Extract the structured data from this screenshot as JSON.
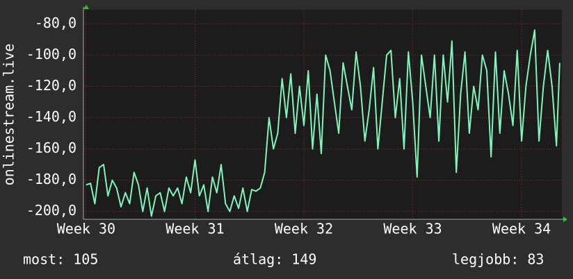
{
  "chart_data": {
    "type": "line",
    "y_label": "onlinestream.live",
    "xlim": [
      29.975,
      34.37
    ],
    "ylim": [
      -205,
      -71
    ],
    "xticks": [
      {
        "value": 30,
        "label": "Week 30"
      },
      {
        "value": 31,
        "label": "Week 31"
      },
      {
        "value": 32,
        "label": "Week 32"
      },
      {
        "value": 33,
        "label": "Week 33"
      },
      {
        "value": 34,
        "label": "Week 34"
      }
    ],
    "yticks": [
      {
        "value": -80,
        "label": "-80,0"
      },
      {
        "value": -100,
        "label": "-100,0"
      },
      {
        "value": -120,
        "label": "-120,0"
      },
      {
        "value": -140,
        "label": "-140,0"
      },
      {
        "value": -160,
        "label": "-160,0"
      },
      {
        "value": -180,
        "label": "-180,0"
      },
      {
        "value": -200,
        "label": "-200,0"
      }
    ],
    "grid": true,
    "x": [
      30,
      30.04,
      30.08,
      30.12,
      30.16,
      30.2,
      30.24,
      30.28,
      30.32,
      30.36,
      30.4,
      30.44,
      30.48,
      30.52,
      30.56,
      30.6,
      30.64,
      30.68,
      30.72,
      30.76,
      30.8,
      30.84,
      30.88,
      30.92,
      30.96,
      31,
      31.04,
      31.08,
      31.12,
      31.16,
      31.2,
      31.24,
      31.28,
      31.32,
      31.36,
      31.4,
      31.44,
      31.48,
      31.52,
      31.56,
      31.6,
      31.64,
      31.68,
      31.72,
      31.76,
      31.8,
      31.84,
      31.88,
      31.92,
      31.96,
      32,
      32.04,
      32.08,
      32.12,
      32.16,
      32.2,
      32.24,
      32.28,
      32.32,
      32.36,
      32.4,
      32.44,
      32.48,
      32.52,
      32.56,
      32.6,
      32.64,
      32.68,
      32.72,
      32.76,
      32.8,
      32.84,
      32.88,
      32.92,
      32.96,
      33,
      33.04,
      33.08,
      33.12,
      33.16,
      33.2,
      33.24,
      33.28,
      33.32,
      33.36,
      33.4,
      33.44,
      33.48,
      33.52,
      33.56,
      33.6,
      33.64,
      33.68,
      33.72,
      33.76,
      33.8,
      33.84,
      33.88,
      33.92,
      33.96,
      34,
      34.04,
      34.08,
      34.12,
      34.16,
      34.2,
      34.24,
      34.28,
      34.32,
      34.35
    ],
    "series": [
      {
        "color": "#80f5b8",
        "values": [
          -183,
          -182,
          -195,
          -172,
          -170,
          -190,
          -180,
          -185,
          -197,
          -188,
          -195,
          -175,
          -183,
          -200,
          -185,
          -203,
          -190,
          -188,
          -200,
          -185,
          -190,
          -185,
          -195,
          -178,
          -188,
          -167,
          -190,
          -183,
          -200,
          -178,
          -188,
          -170,
          -195,
          -200,
          -190,
          -198,
          -185,
          -200,
          -186,
          -187,
          -185,
          -175,
          -140,
          -160,
          -150,
          -115,
          -140,
          -112,
          -150,
          -120,
          -145,
          -110,
          -160,
          -125,
          -163,
          -100,
          -110,
          -130,
          -150,
          -105,
          -120,
          -135,
          -98,
          -120,
          -155,
          -135,
          -108,
          -160,
          -130,
          -100,
          -97,
          -140,
          -115,
          -160,
          -98,
          -130,
          -178,
          -100,
          -120,
          -140,
          -100,
          -155,
          -100,
          -130,
          -91,
          -175,
          -125,
          -98,
          -150,
          -120,
          -135,
          -100,
          -110,
          -165,
          -98,
          -150,
          -110,
          -125,
          -145,
          -97,
          -155,
          -120,
          -100,
          -84,
          -155,
          -120,
          -97,
          -120,
          -158,
          -105
        ]
      }
    ]
  },
  "footer": [
    "most: 105",
    "átlag: 149",
    "legjobb: 83"
  ]
}
